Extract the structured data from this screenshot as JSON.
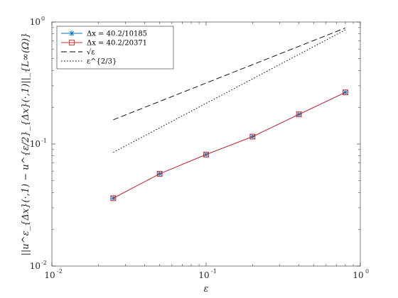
{
  "chart_data": {
    "type": "line",
    "x_scale": "log",
    "y_scale": "log",
    "xlim": [
      0.01,
      1
    ],
    "ylim": [
      0.01,
      1
    ],
    "grid": false,
    "legend_position": "top-left",
    "xlabel": "ε",
    "ylabel": "||u^ε_{Δx}(·,1) − u^{ε/2}_{Δx}(·,1)||_{L∞(Ω)}",
    "x_ticks": [
      {
        "base": "10",
        "exp": "-2",
        "value": 0.01
      },
      {
        "base": "10",
        "exp": "-1",
        "value": 0.1
      },
      {
        "base": "10",
        "exp": "0",
        "value": 1
      }
    ],
    "y_ticks": [
      {
        "base": "10",
        "exp": "-2",
        "value": 0.01
      },
      {
        "base": "10",
        "exp": "-1",
        "value": 0.1
      },
      {
        "base": "10",
        "exp": "0",
        "value": 1
      }
    ],
    "series": [
      {
        "name": "Δx = 40.2/10185",
        "color": "#0072bd",
        "marker": "asterisk",
        "line": "solid",
        "x": [
          0.025,
          0.05,
          0.1,
          0.2,
          0.4,
          0.8
        ],
        "y": [
          0.036,
          0.057,
          0.082,
          0.115,
          0.175,
          0.265
        ]
      },
      {
        "name": "Δx = 40.2/20371",
        "color": "#d62728",
        "marker": "square",
        "line": "solid",
        "x": [
          0.025,
          0.05,
          0.1,
          0.2,
          0.4,
          0.8
        ],
        "y": [
          0.036,
          0.057,
          0.082,
          0.115,
          0.175,
          0.265
        ]
      },
      {
        "name": "√ε",
        "color": "#000000",
        "marker": "none",
        "line": "dashed",
        "x": [
          0.025,
          0.8
        ],
        "y": [
          0.158,
          0.894
        ]
      },
      {
        "name": "ε^{2/3}",
        "color": "#000000",
        "marker": "none",
        "line": "dotted",
        "x": [
          0.025,
          0.8
        ],
        "y": [
          0.0855,
          0.862
        ]
      }
    ]
  }
}
